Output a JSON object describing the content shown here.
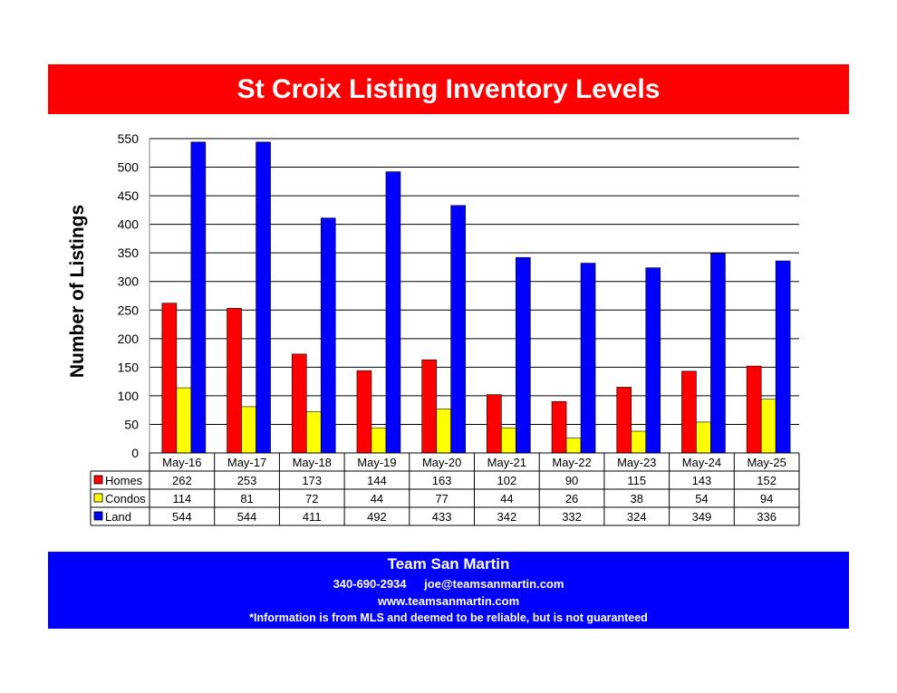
{
  "header": {
    "title": "St Croix Listing Inventory Levels"
  },
  "footer": {
    "company": "Team San Martin",
    "phone": "340-690-2934",
    "email": "joe@teamsanmartin.com",
    "website": "www.teamsanmartin.com",
    "disclaimer": "*Information is from MLS and deemed to be reliable, but is not guaranteed"
  },
  "colors": {
    "title_bar": "#ff0000",
    "footer_bar": "#0000ff",
    "homes": "#ff0000",
    "condos": "#ffff00",
    "land": "#0000ff"
  },
  "chart_data": {
    "type": "bar",
    "title": "",
    "xlabel": "",
    "ylabel": "Number of Listings",
    "ylim": [
      0,
      550
    ],
    "yticks": [
      0,
      50,
      100,
      150,
      200,
      250,
      300,
      350,
      400,
      450,
      500,
      550
    ],
    "grid": true,
    "legend": "data-table",
    "categories": [
      "May-16",
      "May-17",
      "May-18",
      "May-19",
      "May-20",
      "May-21",
      "May-22",
      "May-23",
      "May-24",
      "May-25"
    ],
    "series": [
      {
        "name": "Homes",
        "color": "#ff0000",
        "values": [
          262,
          253,
          173,
          144,
          163,
          102,
          90,
          115,
          143,
          152
        ]
      },
      {
        "name": "Condos",
        "color": "#ffff00",
        "values": [
          114,
          81,
          72,
          44,
          77,
          44,
          26,
          38,
          54,
          94
        ]
      },
      {
        "name": "Land",
        "color": "#0000ff",
        "values": [
          544,
          544,
          411,
          492,
          433,
          342,
          332,
          324,
          349,
          336
        ]
      }
    ]
  }
}
